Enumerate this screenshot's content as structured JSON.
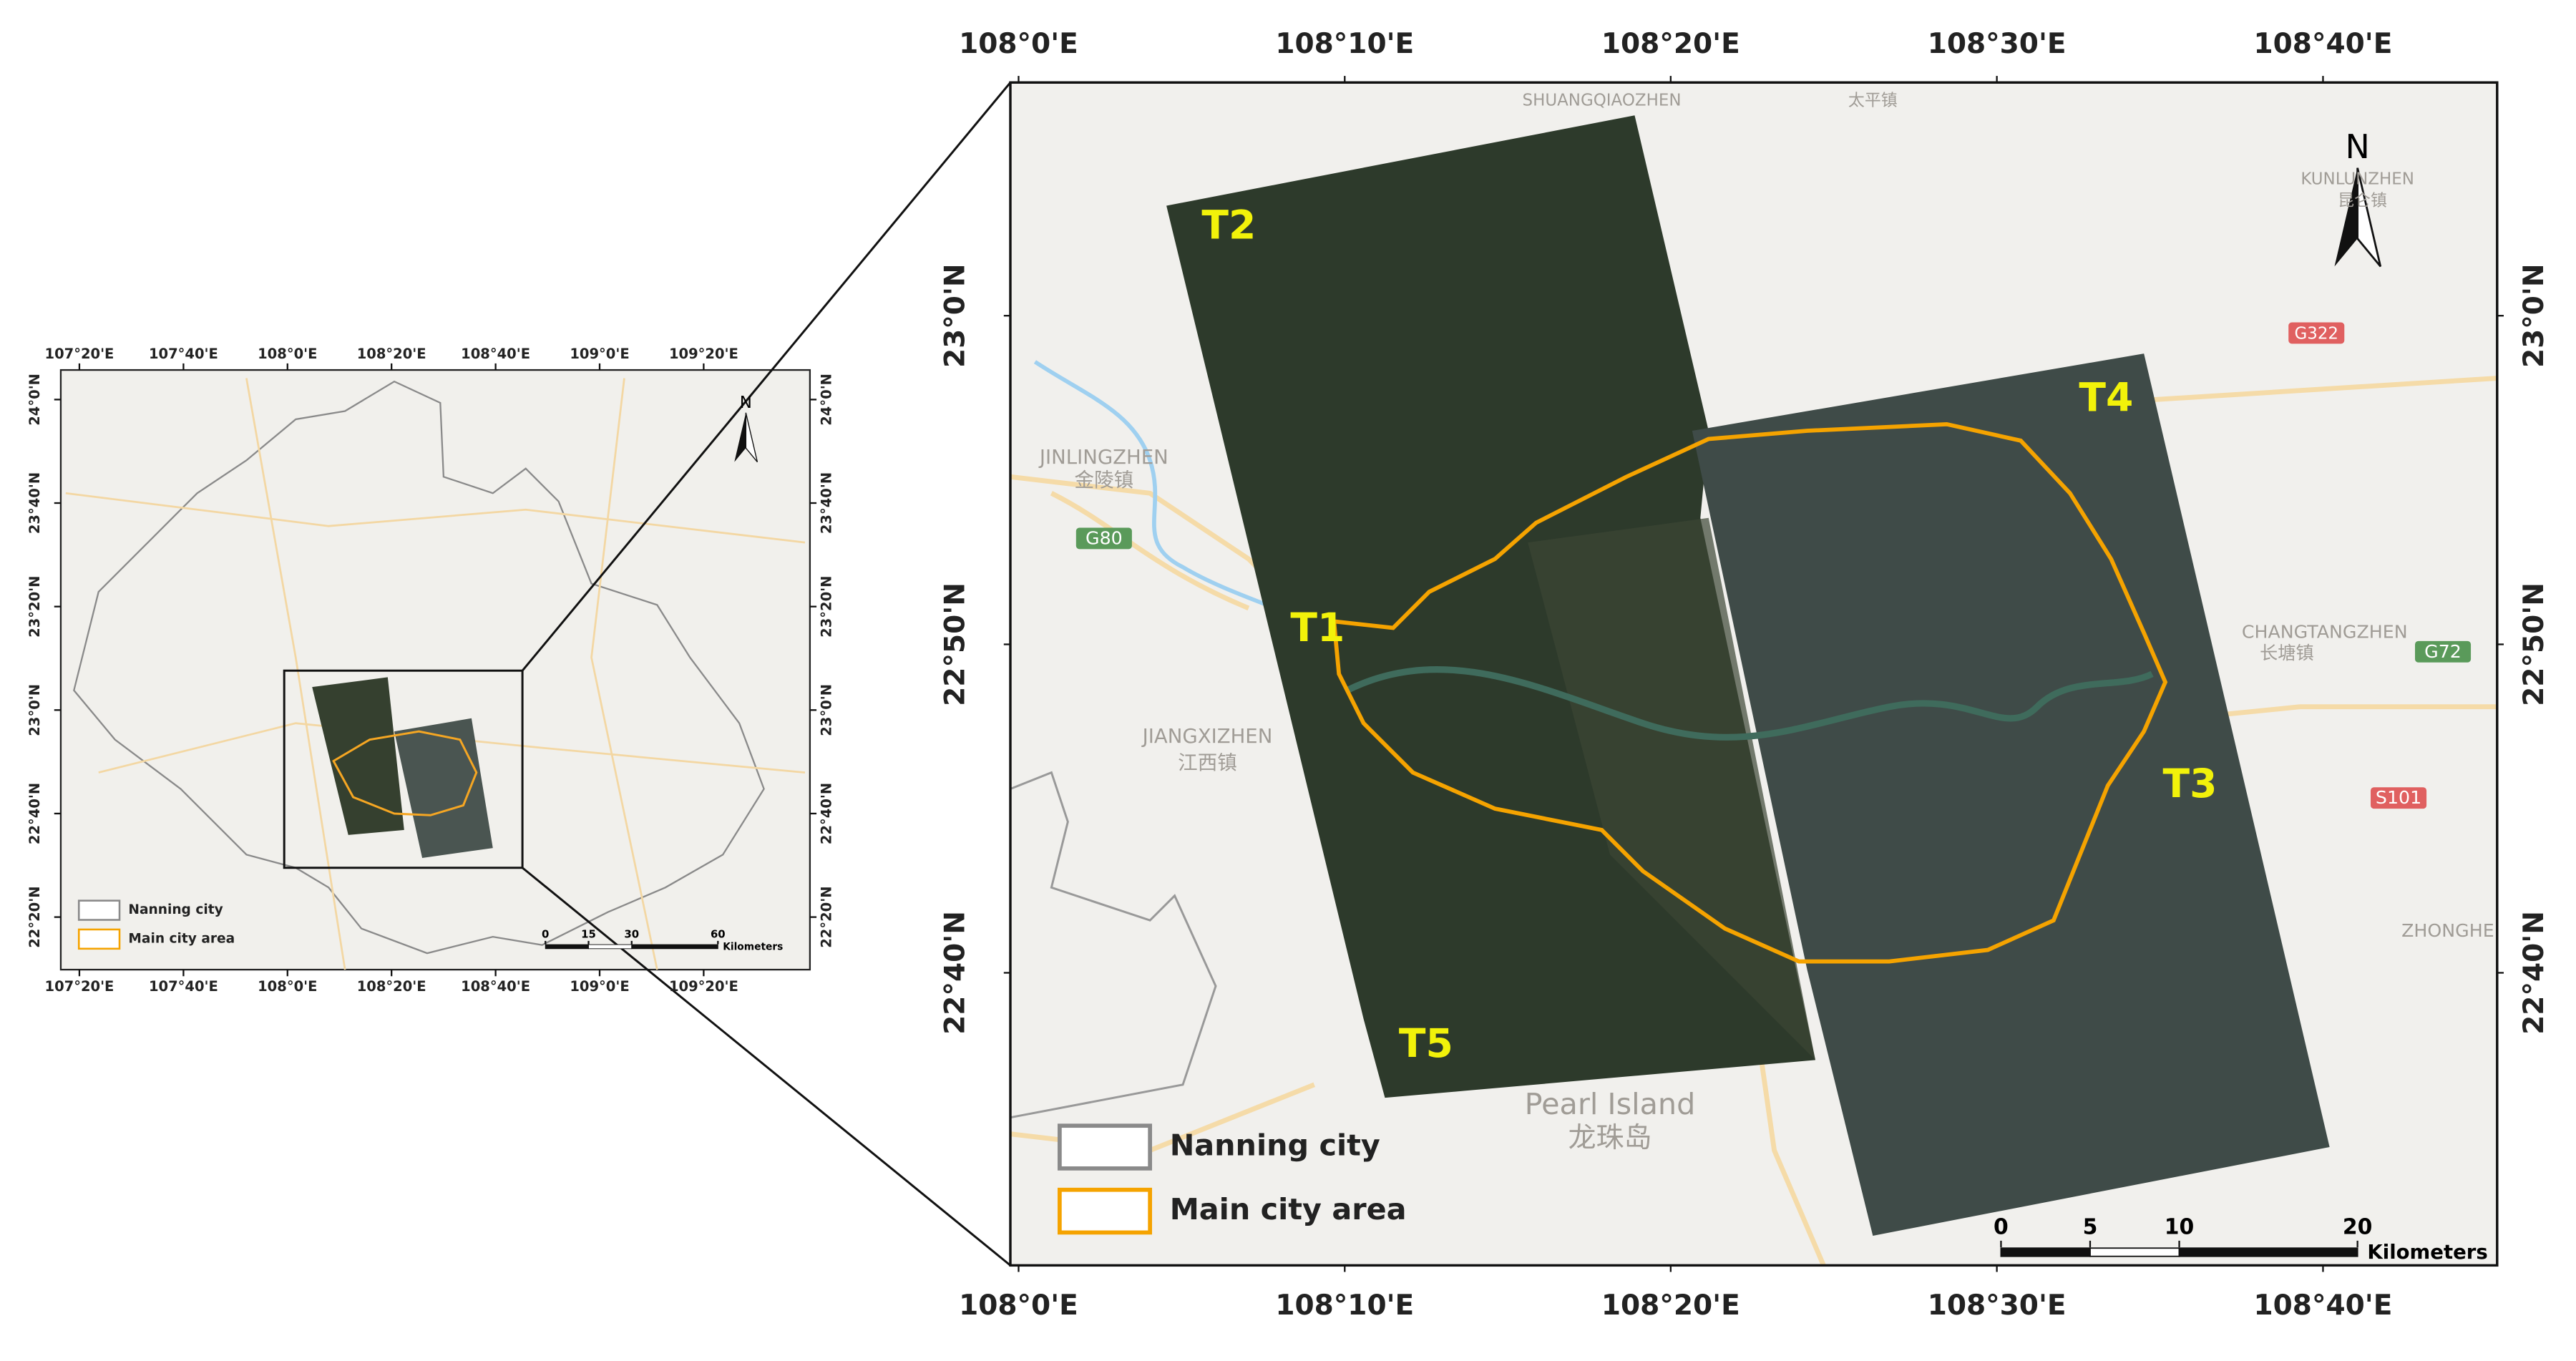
{
  "overview_map": {
    "xlim": [
      107.2737,
      109.6737
    ],
    "ylim": [
      22.164,
      24.0952
    ],
    "xticks": [
      {
        "value": 107.3333,
        "label": "107°20'E"
      },
      {
        "value": 107.6667,
        "label": "107°40'E"
      },
      {
        "value": 108.0,
        "label": "108°0'E"
      },
      {
        "value": 108.3333,
        "label": "108°20'E"
      },
      {
        "value": 108.6667,
        "label": "108°40'E"
      },
      {
        "value": 109.0,
        "label": "109°0'E"
      },
      {
        "value": 109.3333,
        "label": "109°20'E"
      }
    ],
    "yticks": [
      {
        "value": 22.3333,
        "label": "22°20'N"
      },
      {
        "value": 22.6667,
        "label": "22°40'N"
      },
      {
        "value": 23.0,
        "label": "23°0'N"
      },
      {
        "value": 23.3333,
        "label": "23°20'N"
      },
      {
        "value": 23.6667,
        "label": "23°40'N"
      },
      {
        "value": 24.0,
        "label": "24°0'N"
      }
    ],
    "north": "N",
    "legend": [
      "Nanning city",
      "Main city area"
    ],
    "scale_bar": {
      "ticks": [
        0,
        15,
        30,
        60
      ],
      "unit": "Kilometers"
    }
  },
  "detail_map": {
    "xlim": [
      107.9958,
      108.7557
    ],
    "ylim": [
      22.5183,
      23.1183
    ],
    "xticks": [
      {
        "value": 108.0,
        "label": "108°0'E"
      },
      {
        "value": 108.1667,
        "label": "108°10'E"
      },
      {
        "value": 108.3333,
        "label": "108°20'E"
      },
      {
        "value": 108.5,
        "label": "108°30'E"
      },
      {
        "value": 108.6667,
        "label": "108°40'E"
      }
    ],
    "yticks": [
      {
        "value": 22.6667,
        "label": "22°40'N"
      },
      {
        "value": 22.8333,
        "label": "22°50'N"
      },
      {
        "value": 23.0,
        "label": "23°0'N"
      }
    ],
    "north": "N",
    "tiles": [
      "T1",
      "T2",
      "T3",
      "T4",
      "T5"
    ],
    "places": [
      "SHUANGQIAOZHEN",
      "太平镇",
      "KUNLUNZHEN",
      "昆仑镇",
      "G322",
      "JINLINGZHEN",
      "金陵镇",
      "G80",
      "JIANGXIZHEN",
      "江西镇",
      "CHANGTANGZHEN",
      "长塘镇",
      "G72",
      "S101",
      "ZHONGHE",
      "Pearl Island",
      "龙珠岛"
    ],
    "legend": [
      "Nanning city",
      "Main city area"
    ],
    "scale_bar": {
      "ticks": [
        0,
        5,
        10,
        20
      ],
      "unit": "Kilometers"
    }
  }
}
